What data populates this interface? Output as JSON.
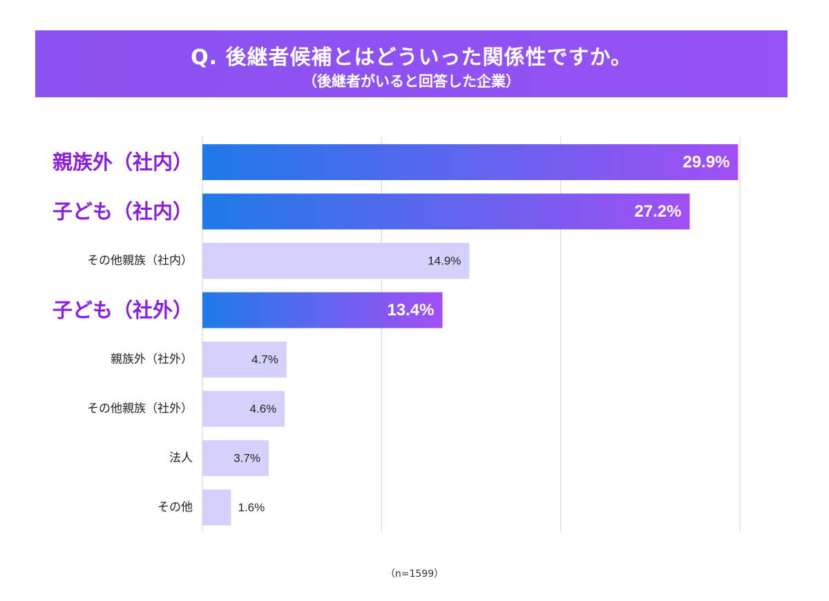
{
  "header": {
    "title": "Q. 後継者候補とはどういった関係性ですか。",
    "subtitle": "（後継者がいると回答した企業）"
  },
  "footer": {
    "sample_size": "（n=1599）"
  },
  "colors": {
    "banner": "#8f52f3",
    "highlight_bar_start": "#1f7ae8",
    "highlight_bar_end": "#a24ff5",
    "highlight_label": "#8a1ee0",
    "normal_bar": "#d4d2fb",
    "normal_label": "#222222",
    "gridline": "#d9d9d9"
  },
  "chart_data": {
    "type": "bar",
    "orientation": "horizontal",
    "categories": [
      "親族外（社内）",
      "子ども（社内）",
      "その他親族（社内）",
      "子ども（社外）",
      "親族外（社外）",
      "その他親族（社外）",
      "法人",
      "その他"
    ],
    "values": [
      29.9,
      27.2,
      14.9,
      13.4,
      4.7,
      4.6,
      3.7,
      1.6
    ],
    "value_labels": [
      "29.9%",
      "27.2%",
      "14.9%",
      "13.4%",
      "4.7%",
      "4.6%",
      "3.7%",
      "1.6%"
    ],
    "highlighted": [
      true,
      true,
      false,
      true,
      false,
      false,
      false,
      false
    ],
    "xlim": [
      0,
      30
    ],
    "gridlines": [
      0,
      10,
      20,
      30
    ],
    "grid": true,
    "unit": "%"
  }
}
